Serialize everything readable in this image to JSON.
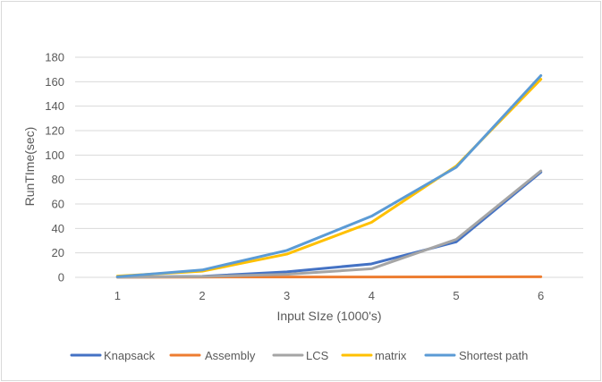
{
  "chart_data": {
    "type": "line",
    "title": "",
    "xlabel": "Input SIze (1000's)",
    "ylabel": "RunTIme(sec)",
    "x": [
      1,
      2,
      3,
      4,
      5,
      6
    ],
    "ylim": [
      0,
      180
    ],
    "yticks": [
      0,
      20,
      40,
      60,
      80,
      100,
      120,
      140,
      160,
      180
    ],
    "grid": true,
    "legend_position": "bottom",
    "series": [
      {
        "name": "Knapsack",
        "color": "#4472c4",
        "values": [
          0.2,
          0.8,
          4.5,
          11,
          29,
          86
        ]
      },
      {
        "name": "Assembly",
        "color": "#ed7d31",
        "values": [
          0.1,
          0.2,
          0.3,
          0.3,
          0.4,
          0.5
        ]
      },
      {
        "name": "LCS",
        "color": "#a5a5a5",
        "values": [
          0.1,
          0.6,
          2.5,
          7,
          31,
          87
        ]
      },
      {
        "name": "matrix",
        "color": "#ffc000",
        "values": [
          1,
          5,
          19,
          45,
          91,
          162
        ]
      },
      {
        "name": "Shortest path",
        "color": "#5b9bd5",
        "values": [
          0.5,
          6,
          22,
          50,
          90,
          165
        ]
      }
    ]
  }
}
